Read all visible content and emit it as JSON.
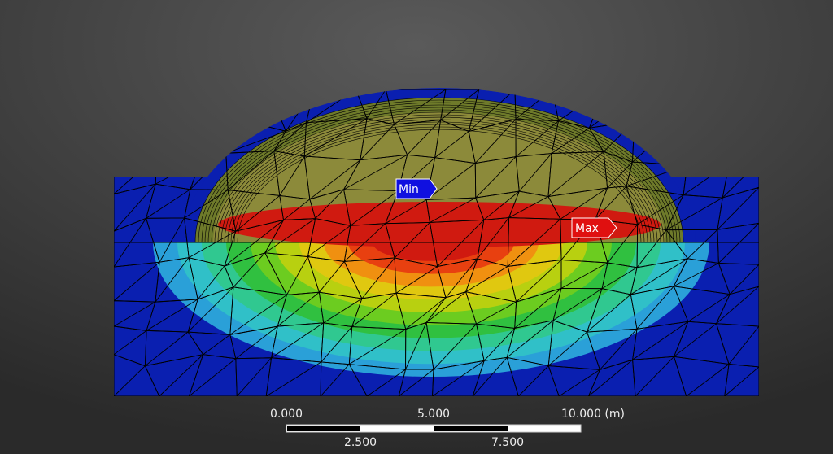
{
  "probes": {
    "min": {
      "label": "Min"
    },
    "max": {
      "label": "Max"
    }
  },
  "scale_bar": {
    "top_labels": [
      "0.000",
      "5.000",
      "10.000 (m)"
    ],
    "bottom_labels": [
      "2.500",
      "7.500"
    ]
  }
}
